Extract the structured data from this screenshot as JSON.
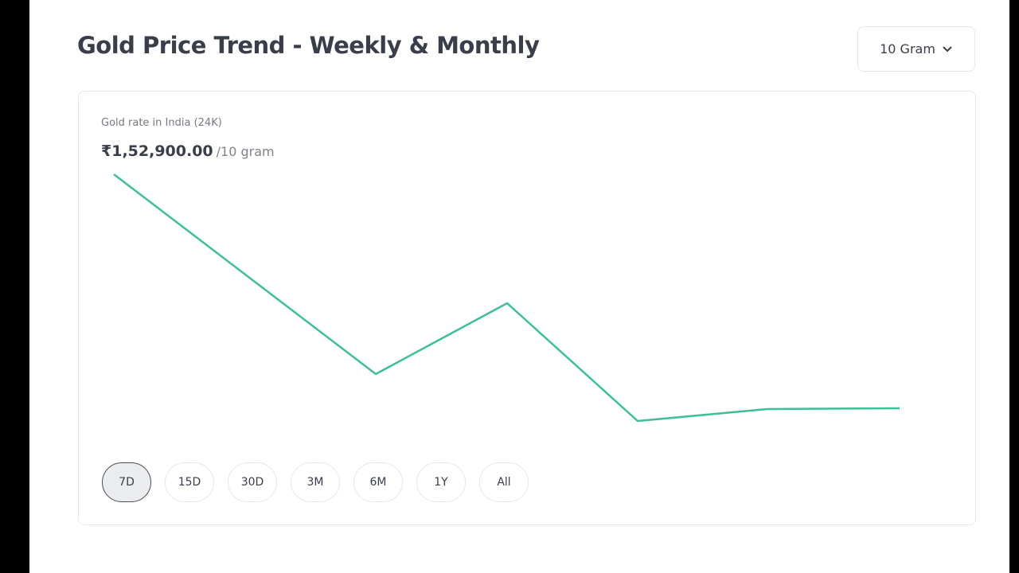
{
  "header": {
    "title": "Gold Price Trend - Weekly & Monthly",
    "unit_selector": "10 Gram"
  },
  "card": {
    "label": "Gold rate in India (24K)",
    "price": "₹1,52,900.00",
    "price_unit": "/10 gram",
    "ranges": [
      "7D",
      "15D",
      "30D",
      "3M",
      "6M",
      "1Y",
      "All"
    ],
    "selected_range": "7D"
  }
}
